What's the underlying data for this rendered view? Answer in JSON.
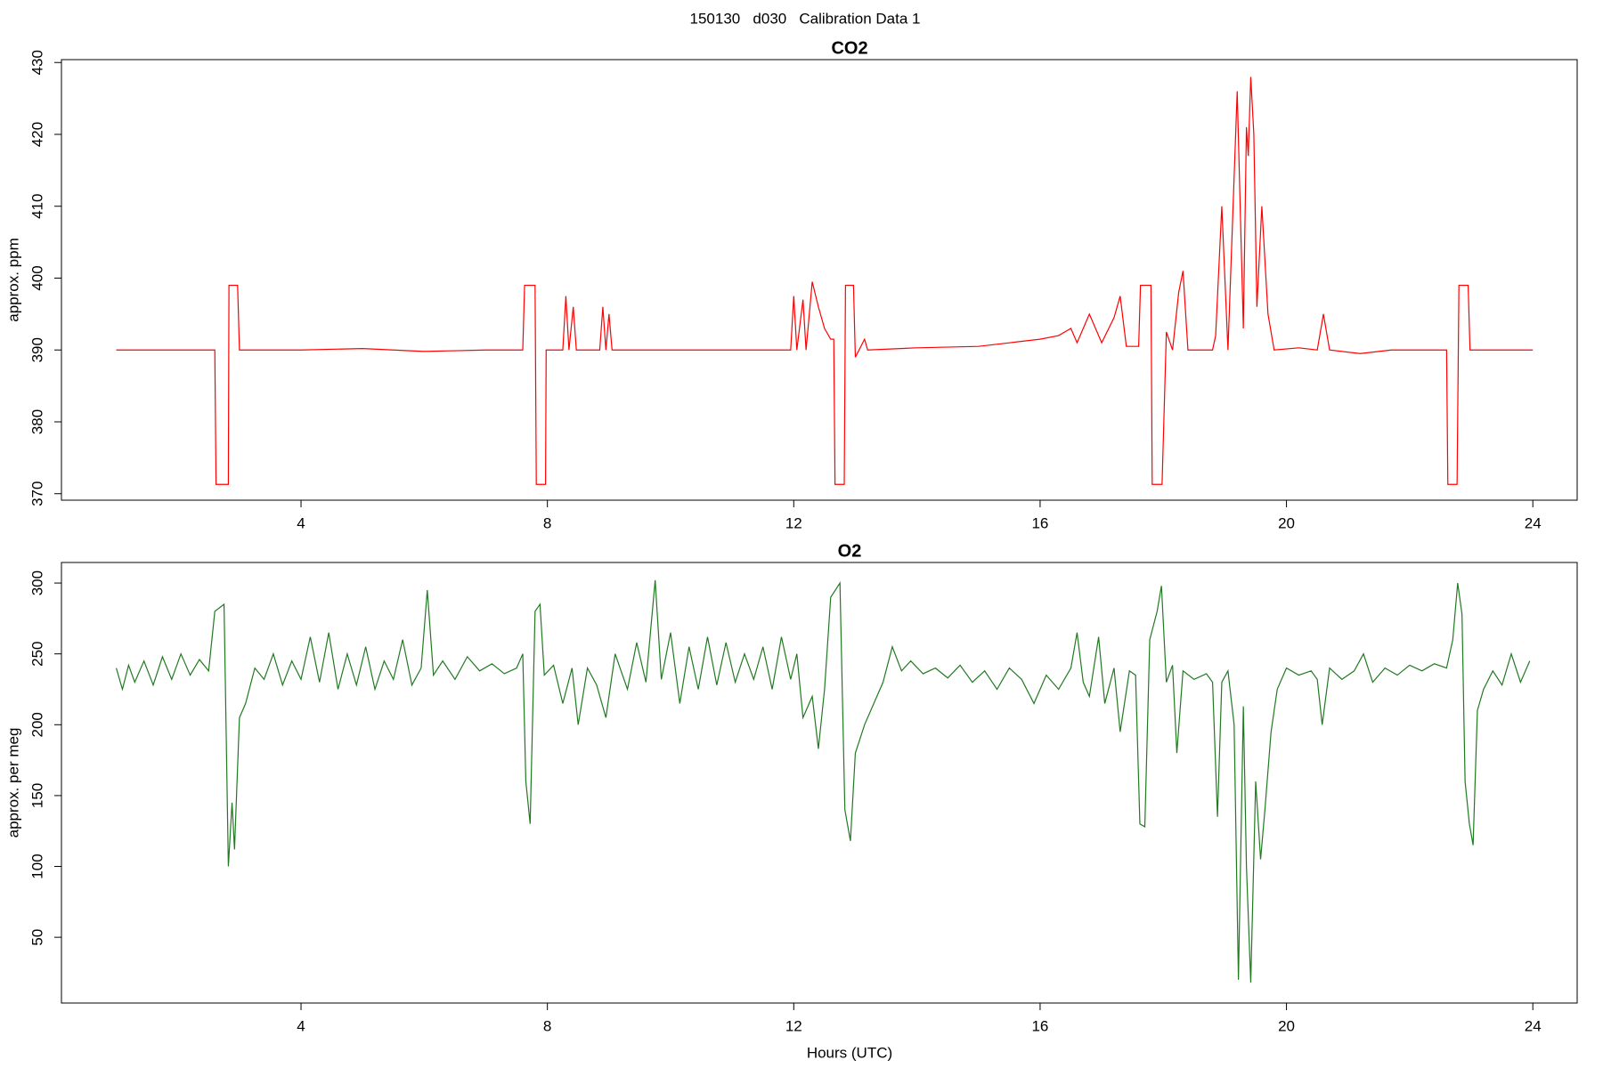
{
  "title": "150130   d030   Calibration Data 1",
  "chart_data": [
    {
      "type": "line",
      "title": "CO2",
      "ylabel": "approx. ppm",
      "color": "#ff0000",
      "xlim": [
        0.11,
        24.72
      ],
      "ylim": [
        369.1,
        430.4
      ],
      "xticks": [
        4,
        8,
        12,
        16,
        20,
        24
      ],
      "yticks": [
        370,
        380,
        390,
        400,
        410,
        420,
        430
      ],
      "x": [
        1.0,
        2.0,
        2.6,
        2.62,
        2.82,
        2.83,
        2.97,
        3.0,
        4.0,
        5.0,
        6.0,
        6.5,
        7.0,
        7.6,
        7.63,
        7.8,
        7.82,
        7.97,
        7.98,
        8.25,
        8.3,
        8.35,
        8.42,
        8.47,
        8.52,
        8.85,
        8.9,
        8.95,
        9.0,
        9.05,
        10.0,
        11.0,
        11.95,
        12.0,
        12.05,
        12.15,
        12.2,
        12.3,
        12.4,
        12.5,
        12.6,
        12.65,
        12.67,
        12.82,
        12.84,
        12.97,
        13.0,
        13.15,
        13.2,
        14.0,
        15.0,
        15.5,
        16.0,
        16.3,
        16.5,
        16.6,
        16.8,
        17.0,
        17.2,
        17.3,
        17.4,
        17.6,
        17.63,
        17.8,
        17.82,
        17.98,
        18.05,
        18.15,
        18.25,
        18.32,
        18.4,
        18.8,
        18.85,
        18.95,
        19.05,
        19.2,
        19.3,
        19.35,
        19.38,
        19.42,
        19.47,
        19.52,
        19.6,
        19.7,
        19.8,
        20.2,
        20.5,
        20.6,
        20.7,
        21.2,
        21.7,
        22.6,
        22.62,
        22.77,
        22.8,
        22.95,
        22.98,
        24.0
      ],
      "values": [
        390,
        390,
        390,
        371.3,
        371.3,
        399,
        399,
        390,
        390,
        390.2,
        389.8,
        389.9,
        390,
        390,
        399,
        399,
        371.3,
        371.3,
        390,
        390,
        397.5,
        390,
        396,
        390,
        390,
        390,
        396,
        390,
        395,
        390,
        390,
        390,
        390,
        397.5,
        390,
        397,
        390,
        399.5,
        396,
        393,
        391.5,
        391.5,
        371.3,
        371.3,
        399,
        399,
        389,
        391.5,
        390,
        390.3,
        390.5,
        391,
        391.5,
        392,
        393,
        391,
        395,
        391,
        394.5,
        397.5,
        390.5,
        390.5,
        399,
        399,
        371.3,
        371.3,
        392.5,
        390,
        398,
        401,
        390,
        390,
        392,
        410,
        390,
        426,
        393,
        421,
        417,
        428,
        420,
        396,
        410,
        395,
        390,
        390.3,
        390,
        395,
        390,
        389.5,
        390,
        390,
        371.3,
        371.3,
        399,
        399,
        390,
        390
      ]
    },
    {
      "type": "line",
      "title": "O2",
      "ylabel": "approx. per meg",
      "xlabel": "Hours (UTC)",
      "color": "#217a21",
      "xlim": [
        0.11,
        24.72
      ],
      "ylim": [
        3.6,
        314.5
      ],
      "xticks": [
        4,
        8,
        12,
        16,
        20,
        24
      ],
      "yticks": [
        50,
        100,
        150,
        200,
        250,
        300
      ],
      "x": [
        1.0,
        1.1,
        1.2,
        1.3,
        1.45,
        1.6,
        1.75,
        1.9,
        2.05,
        2.2,
        2.35,
        2.5,
        2.6,
        2.75,
        2.82,
        2.88,
        2.92,
        3.0,
        3.1,
        3.25,
        3.4,
        3.55,
        3.7,
        3.85,
        4.0,
        4.15,
        4.3,
        4.45,
        4.6,
        4.75,
        4.9,
        5.05,
        5.2,
        5.35,
        5.5,
        5.65,
        5.8,
        5.95,
        6.05,
        6.15,
        6.3,
        6.5,
        6.7,
        6.9,
        7.1,
        7.3,
        7.5,
        7.6,
        7.65,
        7.72,
        7.8,
        7.88,
        7.95,
        8.1,
        8.25,
        8.4,
        8.5,
        8.65,
        8.8,
        8.95,
        9.1,
        9.3,
        9.45,
        9.6,
        9.75,
        9.85,
        10.0,
        10.15,
        10.3,
        10.45,
        10.6,
        10.75,
        10.9,
        11.05,
        11.2,
        11.35,
        11.5,
        11.65,
        11.8,
        11.95,
        12.05,
        12.15,
        12.3,
        12.4,
        12.5,
        12.6,
        12.75,
        12.83,
        12.92,
        13.0,
        13.15,
        13.3,
        13.45,
        13.6,
        13.75,
        13.9,
        14.1,
        14.3,
        14.5,
        14.7,
        14.9,
        15.1,
        15.3,
        15.5,
        15.7,
        15.9,
        16.1,
        16.3,
        16.5,
        16.6,
        16.7,
        16.8,
        16.95,
        17.05,
        17.2,
        17.3,
        17.45,
        17.55,
        17.62,
        17.7,
        17.78,
        17.9,
        17.97,
        18.05,
        18.15,
        18.22,
        18.32,
        18.5,
        18.7,
        18.8,
        18.88,
        18.95,
        19.05,
        19.15,
        19.22,
        19.3,
        19.35,
        19.42,
        19.5,
        19.58,
        19.65,
        19.75,
        19.85,
        20.0,
        20.2,
        20.4,
        20.5,
        20.58,
        20.7,
        20.9,
        21.1,
        21.25,
        21.4,
        21.6,
        21.8,
        22.0,
        22.2,
        22.4,
        22.6,
        22.7,
        22.78,
        22.85,
        22.9,
        22.97,
        23.03,
        23.1,
        23.2,
        23.35,
        23.5,
        23.65,
        23.8,
        23.95
      ],
      "values": [
        240,
        225,
        242,
        230,
        245,
        228,
        248,
        232,
        250,
        235,
        246,
        238,
        280,
        285,
        100,
        145,
        112,
        205,
        215,
        240,
        232,
        250,
        228,
        245,
        232,
        262,
        230,
        265,
        225,
        250,
        228,
        255,
        225,
        245,
        232,
        260,
        228,
        240,
        295,
        235,
        245,
        232,
        248,
        238,
        243,
        236,
        240,
        250,
        160,
        130,
        280,
        285,
        235,
        242,
        215,
        240,
        200,
        240,
        228,
        205,
        250,
        225,
        258,
        230,
        302,
        232,
        265,
        215,
        255,
        225,
        262,
        228,
        258,
        230,
        250,
        232,
        255,
        225,
        262,
        232,
        250,
        205,
        220,
        183,
        225,
        290,
        300,
        140,
        118,
        180,
        200,
        215,
        230,
        255,
        238,
        245,
        236,
        240,
        233,
        242,
        230,
        238,
        225,
        240,
        232,
        215,
        235,
        225,
        240,
        265,
        230,
        220,
        262,
        215,
        240,
        195,
        238,
        235,
        130,
        128,
        260,
        280,
        298,
        230,
        242,
        180,
        238,
        232,
        236,
        230,
        135,
        230,
        238,
        200,
        20,
        213,
        100,
        18,
        160,
        105,
        140,
        195,
        225,
        240,
        235,
        238,
        232,
        200,
        240,
        232,
        238,
        250,
        230,
        240,
        235,
        242,
        238,
        243,
        240,
        260,
        300,
        278,
        160,
        130,
        115,
        210,
        225,
        238,
        228,
        250,
        230,
        245
      ]
    }
  ]
}
